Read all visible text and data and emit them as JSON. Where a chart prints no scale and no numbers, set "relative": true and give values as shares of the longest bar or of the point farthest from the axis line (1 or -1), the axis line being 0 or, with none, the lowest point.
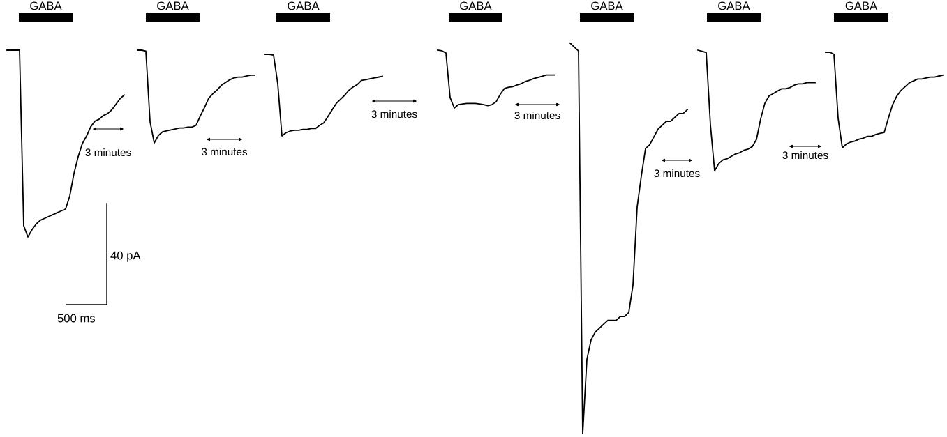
{
  "chart_data": [
    {
      "type": "line",
      "relative": true,
      "categories": [
        null,
        null,
        null,
        null,
        null,
        null,
        null,
        null,
        null,
        null,
        null,
        null,
        null,
        null,
        null,
        null,
        null,
        null,
        null,
        null,
        null,
        null,
        null,
        null,
        null,
        null,
        null,
        null,
        null
      ],
      "series": [
        {
          "color": "#000000",
          "values": [
            1,
            1,
            1,
            1,
            0.06,
            0,
            0.04,
            0.07,
            0.09,
            0.1,
            0.11,
            0.12,
            0.13,
            0.14,
            0.15,
            0.22,
            0.34,
            0.43,
            0.5,
            0.54,
            0.59,
            0.62,
            0.63,
            0.65,
            0.66,
            0.68,
            0.71,
            0.74,
            0.76
          ]
        }
      ],
      "annotations": [
        "GABA",
        "3 minutes",
        "40 pA",
        "500 ms"
      ]
    },
    {
      "type": "line",
      "relative": true,
      "categories": [
        null,
        null,
        null,
        null,
        null,
        null,
        null,
        null,
        null,
        null,
        null,
        null,
        null,
        null,
        null,
        null,
        null,
        null,
        null,
        null,
        null,
        null,
        null,
        null,
        null,
        null,
        null,
        null,
        null
      ],
      "series": [
        {
          "color": "#000000",
          "values": [
            1,
            1,
            0.99,
            0.23,
            0,
            0.08,
            0.12,
            0.13,
            0.14,
            0.15,
            0.16,
            0.16,
            0.17,
            0.17,
            0.19,
            0.29,
            0.38,
            0.48,
            0.53,
            0.57,
            0.62,
            0.65,
            0.68,
            0.7,
            0.71,
            0.71,
            0.72,
            0.73,
            0.73
          ]
        }
      ],
      "annotations": [
        "GABA",
        "3 minutes"
      ]
    },
    {
      "type": "line",
      "relative": true,
      "categories": [
        null,
        null,
        null,
        null,
        null,
        null,
        null,
        null,
        null,
        null,
        null,
        null,
        null,
        null,
        null,
        null,
        null,
        null,
        null,
        null,
        null,
        null,
        null,
        null,
        null,
        null,
        null,
        null,
        null
      ],
      "series": [
        {
          "color": "#000000",
          "values": [
            1,
            1,
            0.99,
            0.64,
            0,
            0.04,
            0.06,
            0.07,
            0.07,
            0.08,
            0.08,
            0.09,
            0.09,
            0.13,
            0.16,
            0.24,
            0.32,
            0.4,
            0.45,
            0.5,
            0.56,
            0.6,
            0.63,
            0.68,
            0.69,
            0.7,
            0.71,
            0.72,
            0.73
          ]
        }
      ],
      "annotations": [
        "GABA",
        "3 minutes"
      ]
    },
    {
      "type": "line",
      "relative": true,
      "categories": [
        null,
        null,
        null,
        null,
        null,
        null,
        null,
        null,
        null,
        null,
        null,
        null,
        null,
        null,
        null,
        null,
        null,
        null,
        null,
        null,
        null,
        null,
        null,
        null,
        null,
        null,
        null,
        null,
        null
      ],
      "series": [
        {
          "color": "#000000",
          "values": [
            1,
            0.99,
            0.95,
            0.18,
            0,
            0.06,
            0.07,
            0.08,
            0.08,
            0.08,
            0.07,
            0.06,
            0.04,
            0.06,
            0.11,
            0.24,
            0.34,
            0.36,
            0.37,
            0.4,
            0.42,
            0.46,
            0.48,
            0.51,
            0.53,
            0.55,
            0.57,
            0.57,
            0.57
          ]
        }
      ],
      "annotations": [
        "GABA",
        "3 minutes"
      ]
    },
    {
      "type": "line",
      "relative": true,
      "categories": [
        null,
        null,
        null,
        null,
        null,
        null,
        null,
        null,
        null,
        null,
        null,
        null,
        null,
        null,
        null,
        null,
        null,
        null,
        null,
        null,
        null,
        null,
        null,
        null,
        null,
        null,
        null,
        null,
        null
      ],
      "series": [
        {
          "color": "#000000",
          "values": [
            1,
            0.99,
            0.98,
            0,
            0.19,
            0.24,
            0.26,
            0.27,
            0.28,
            0.29,
            0.29,
            0.29,
            0.3,
            0.3,
            0.31,
            0.38,
            0.58,
            0.66,
            0.73,
            0.74,
            0.76,
            0.78,
            0.79,
            0.8,
            0.8,
            0.81,
            0.82,
            0.82,
            0.83
          ]
        }
      ],
      "annotations": [
        "GABA",
        "3 minutes"
      ]
    },
    {
      "type": "line",
      "relative": true,
      "categories": [
        null,
        null,
        null,
        null,
        null,
        null,
        null,
        null,
        null,
        null,
        null,
        null,
        null,
        null,
        null,
        null,
        null,
        null,
        null,
        null,
        null,
        null,
        null,
        null,
        null,
        null,
        null,
        null,
        null
      ],
      "series": [
        {
          "color": "#000000",
          "values": [
            1,
            0.99,
            0.98,
            0.38,
            0,
            0.06,
            0.09,
            0.1,
            0.12,
            0.14,
            0.15,
            0.17,
            0.18,
            0.2,
            0.26,
            0.43,
            0.56,
            0.62,
            0.64,
            0.66,
            0.68,
            0.68,
            0.69,
            0.71,
            0.72,
            0.72,
            0.73,
            0.73,
            0.73
          ]
        }
      ],
      "annotations": [
        "GABA",
        "3 minutes"
      ]
    },
    {
      "type": "line",
      "relative": true,
      "categories": [
        null,
        null,
        null,
        null,
        null,
        null,
        null,
        null,
        null,
        null,
        null,
        null,
        null,
        null,
        null,
        null,
        null,
        null,
        null,
        null,
        null,
        null,
        null,
        null,
        null,
        null,
        null,
        null,
        null
      ],
      "series": [
        {
          "color": "#000000",
          "values": [
            1,
            1,
            0.98,
            0.31,
            0,
            0.04,
            0.06,
            0.07,
            0.09,
            0.1,
            0.12,
            0.12,
            0.14,
            0.15,
            0.16,
            0.31,
            0.45,
            0.54,
            0.6,
            0.64,
            0.68,
            0.7,
            0.72,
            0.72,
            0.73,
            0.74,
            0.74,
            0.75,
            0.76
          ]
        }
      ],
      "annotations": [
        "GABA"
      ]
    }
  ]
}
